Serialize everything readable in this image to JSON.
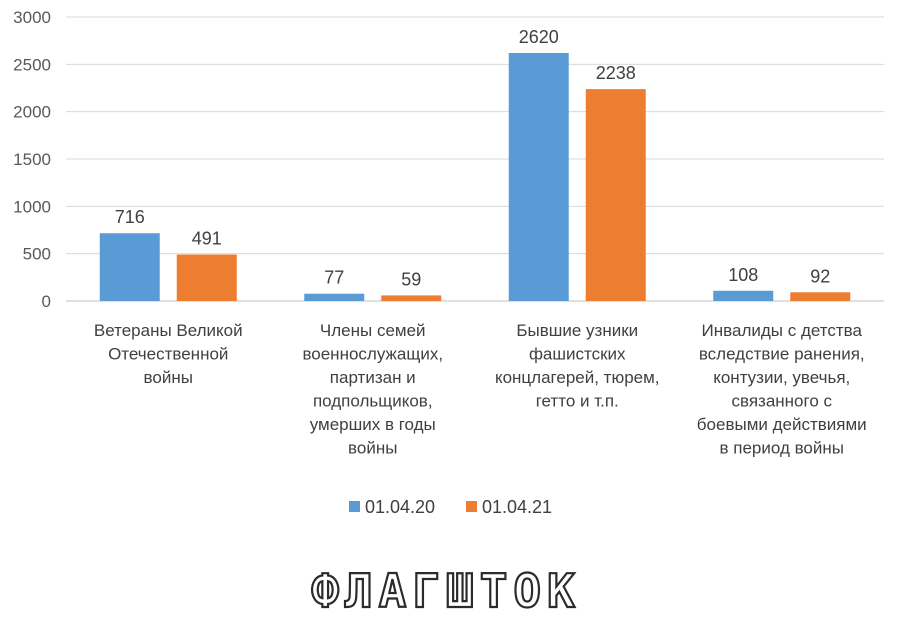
{
  "chart_data": {
    "type": "bar",
    "categories": [
      [
        "Ветераны Великой",
        "Отечественной",
        "войны"
      ],
      [
        "Члены семей",
        "военнослужащих,",
        "партизан и",
        "подпольщиков,",
        "умерших в годы",
        "войны"
      ],
      [
        "Бывшие узники",
        "фашистских",
        "концлагерей, тюрем,",
        "гетто и т.п."
      ],
      [
        "Инвалиды с детства",
        "вследствие ранения,",
        "контузии, увечья,",
        "связанного с",
        "боевыми действиями",
        "в период войны"
      ]
    ],
    "series": [
      {
        "name": "01.04.20",
        "values": [
          716,
          77,
          2620,
          108
        ],
        "color": "#5b9bd5"
      },
      {
        "name": "01.04.21",
        "values": [
          491,
          59,
          2238,
          92
        ],
        "color": "#ed7d31"
      }
    ],
    "yticks": [
      0,
      500,
      1000,
      1500,
      2000,
      2500,
      3000
    ],
    "ylim": [
      0,
      3000
    ],
    "grid": true,
    "legend": "bottom",
    "data_labels": true
  },
  "watermark": {
    "text": "ФЛАГШТОК"
  }
}
